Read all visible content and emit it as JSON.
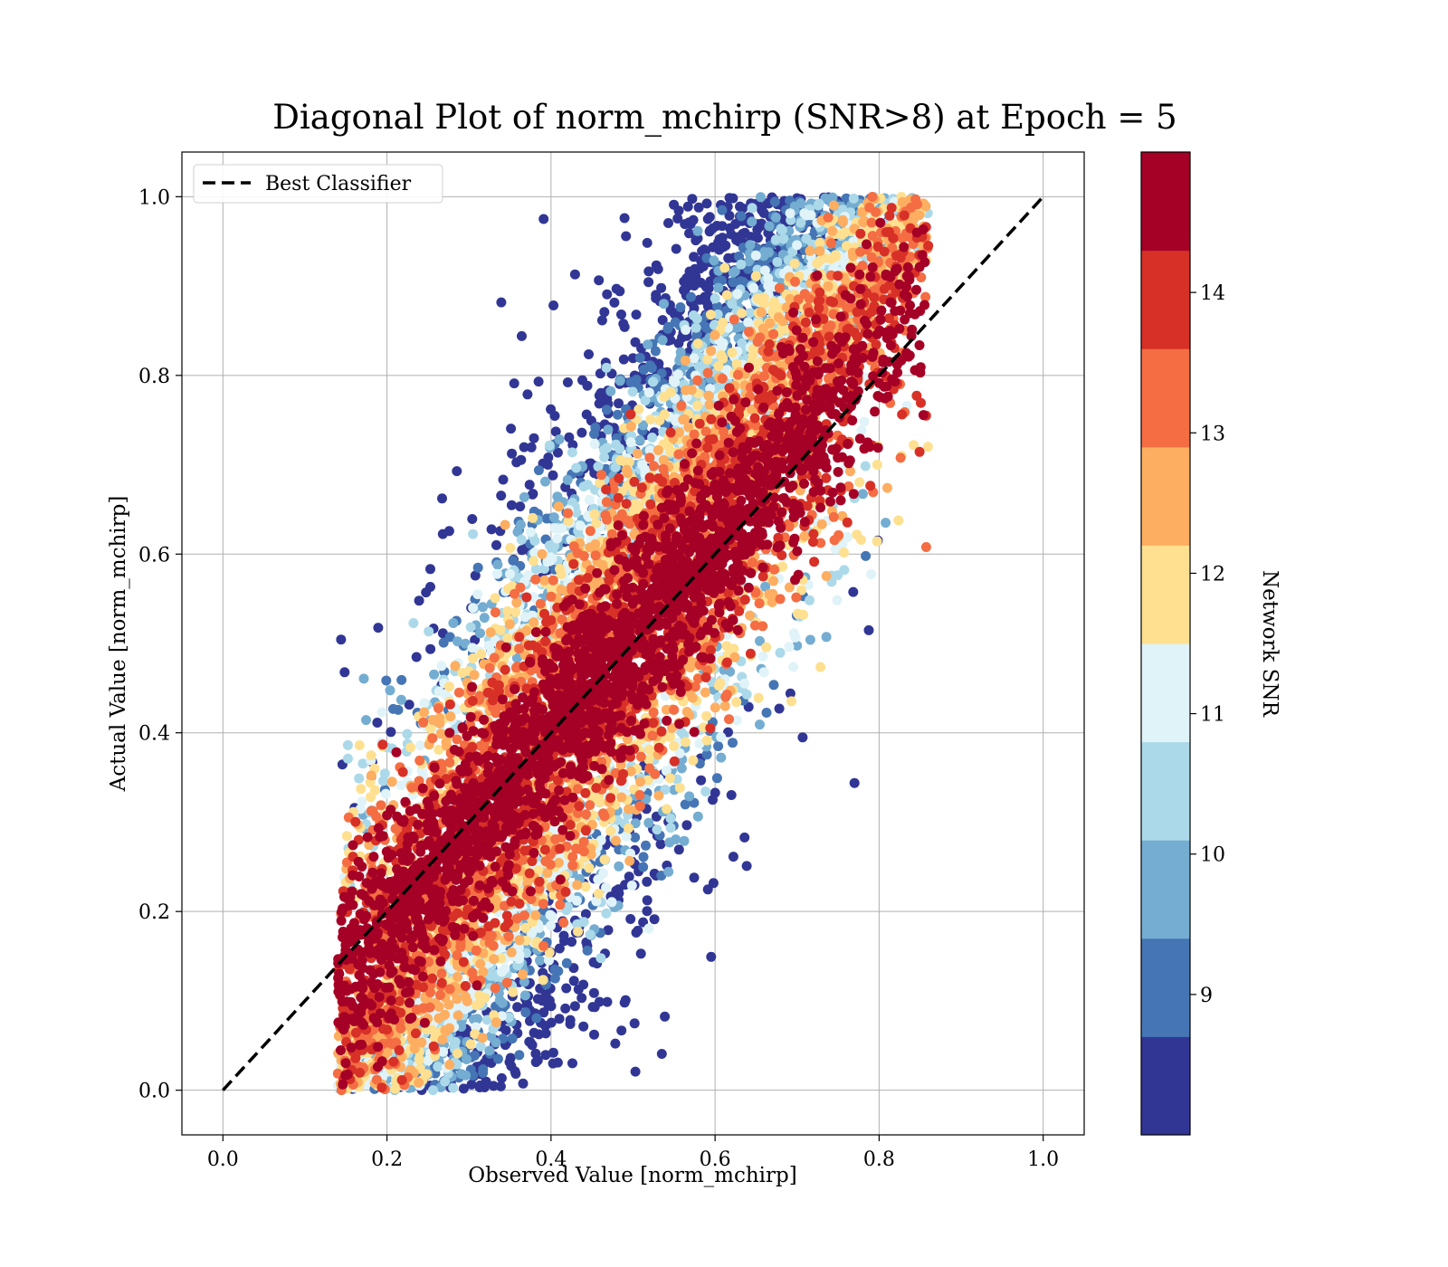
{
  "chart_data": {
    "type": "scatter",
    "title": "Diagonal Plot of norm_mchirp (SNR>8) at Epoch = 5",
    "xlabel": "Observed Value [norm_mchirp]",
    "ylabel": "Actual Value [norm_mchirp]",
    "xlim": [
      -0.05,
      1.05
    ],
    "ylim": [
      -0.05,
      1.05
    ],
    "xticks": [
      "0.0",
      "0.2",
      "0.4",
      "0.6",
      "0.8",
      "1.0"
    ],
    "yticks": [
      "0.0",
      "0.2",
      "0.4",
      "0.6",
      "0.8",
      "1.0"
    ],
    "grid": true,
    "legend": {
      "placement": "upper-left",
      "entries": [
        "Best Classifier"
      ]
    },
    "reference_line": {
      "name": "Best Classifier",
      "style": "dashed",
      "color": "#000000",
      "x": [
        0,
        1
      ],
      "y": [
        0,
        1
      ]
    },
    "colorbar": {
      "label": "Network SNR",
      "min": 8,
      "max": 15,
      "ticks": [
        "9",
        "10",
        "11",
        "12",
        "13",
        "14"
      ],
      "colors": [
        "#313695",
        "#4575b4",
        "#74add1",
        "#abd9e9",
        "#e0f3f8",
        "#fee090",
        "#fdae61",
        "#f46d43",
        "#d73027",
        "#a50026"
      ]
    },
    "point_cloud": {
      "description_of_distribution": "dense cloud along the diagonal band",
      "x_range": [
        0.14,
        0.86
      ],
      "y_range": [
        0.0,
        1.0
      ],
      "offset_sd": 0.09,
      "low_snr_region": "upper-left and lower-right fringes",
      "high_snr_region": "core near the diagonal"
    }
  }
}
